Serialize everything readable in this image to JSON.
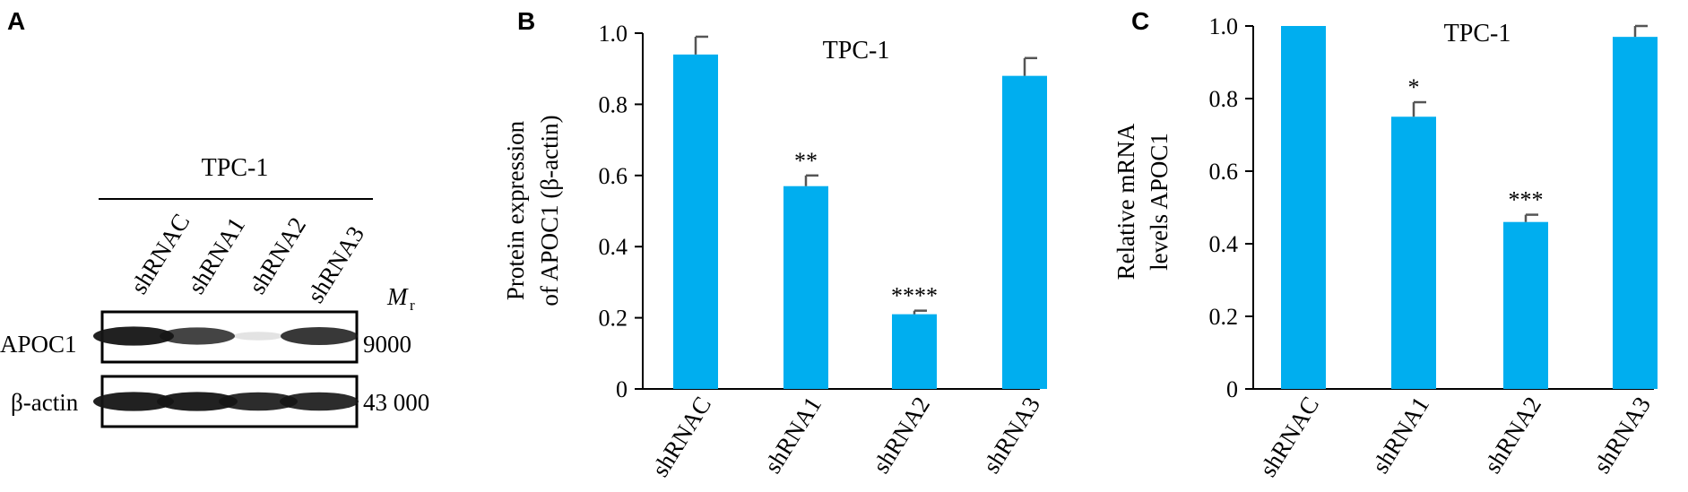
{
  "panels": {
    "a": {
      "letter": "A",
      "cell_line": "TPC-1",
      "lanes": [
        "shRNAC",
        "shRNA1",
        "shRNA2",
        "shRNA3"
      ],
      "mr_symbol": "M",
      "mr_subscript": "r",
      "rows": [
        {
          "name": "APOC1",
          "mr": "9000",
          "intensity": [
            0.95,
            0.8,
            0.1,
            0.85
          ]
        },
        {
          "name": "β-actin",
          "mr": "43 000",
          "intensity": [
            0.95,
            0.95,
            0.9,
            0.9
          ]
        }
      ]
    }
  },
  "colors": {
    "bar": "#00AEEF",
    "error": "#555555",
    "axis": "#000000",
    "band": "#151515"
  },
  "chart_data": [
    {
      "panel": "B",
      "type": "bar",
      "title": "TPC-1",
      "ylabel": [
        "Protein expression",
        "of APOC1 (β-actin)"
      ],
      "categories": [
        "shRNAC",
        "shRNA1",
        "shRNA2",
        "shRNA3"
      ],
      "values": [
        0.94,
        0.57,
        0.21,
        0.88
      ],
      "errors": [
        0.05,
        0.03,
        0.01,
        0.05
      ],
      "significance": [
        "",
        "**",
        "****",
        ""
      ],
      "ylim": [
        0,
        1.0
      ],
      "yticks": [
        "0",
        "0.2",
        "0.4",
        "0.6",
        "0.8",
        "1.0"
      ]
    },
    {
      "panel": "C",
      "type": "bar",
      "title": "TPC-1",
      "ylabel": [
        "Relative mRNA",
        "levels APOC1"
      ],
      "categories": [
        "shRNAC",
        "shRNA1",
        "shRNA2",
        "shRNA3"
      ],
      "values": [
        1.0,
        0.75,
        0.46,
        0.97
      ],
      "errors": [
        0.0,
        0.04,
        0.02,
        0.03
      ],
      "significance": [
        "",
        "*",
        "***",
        ""
      ],
      "ylim": [
        0,
        1.0
      ],
      "yticks": [
        "0",
        "0.2",
        "0.4",
        "0.6",
        "0.8",
        "1.0"
      ]
    }
  ]
}
